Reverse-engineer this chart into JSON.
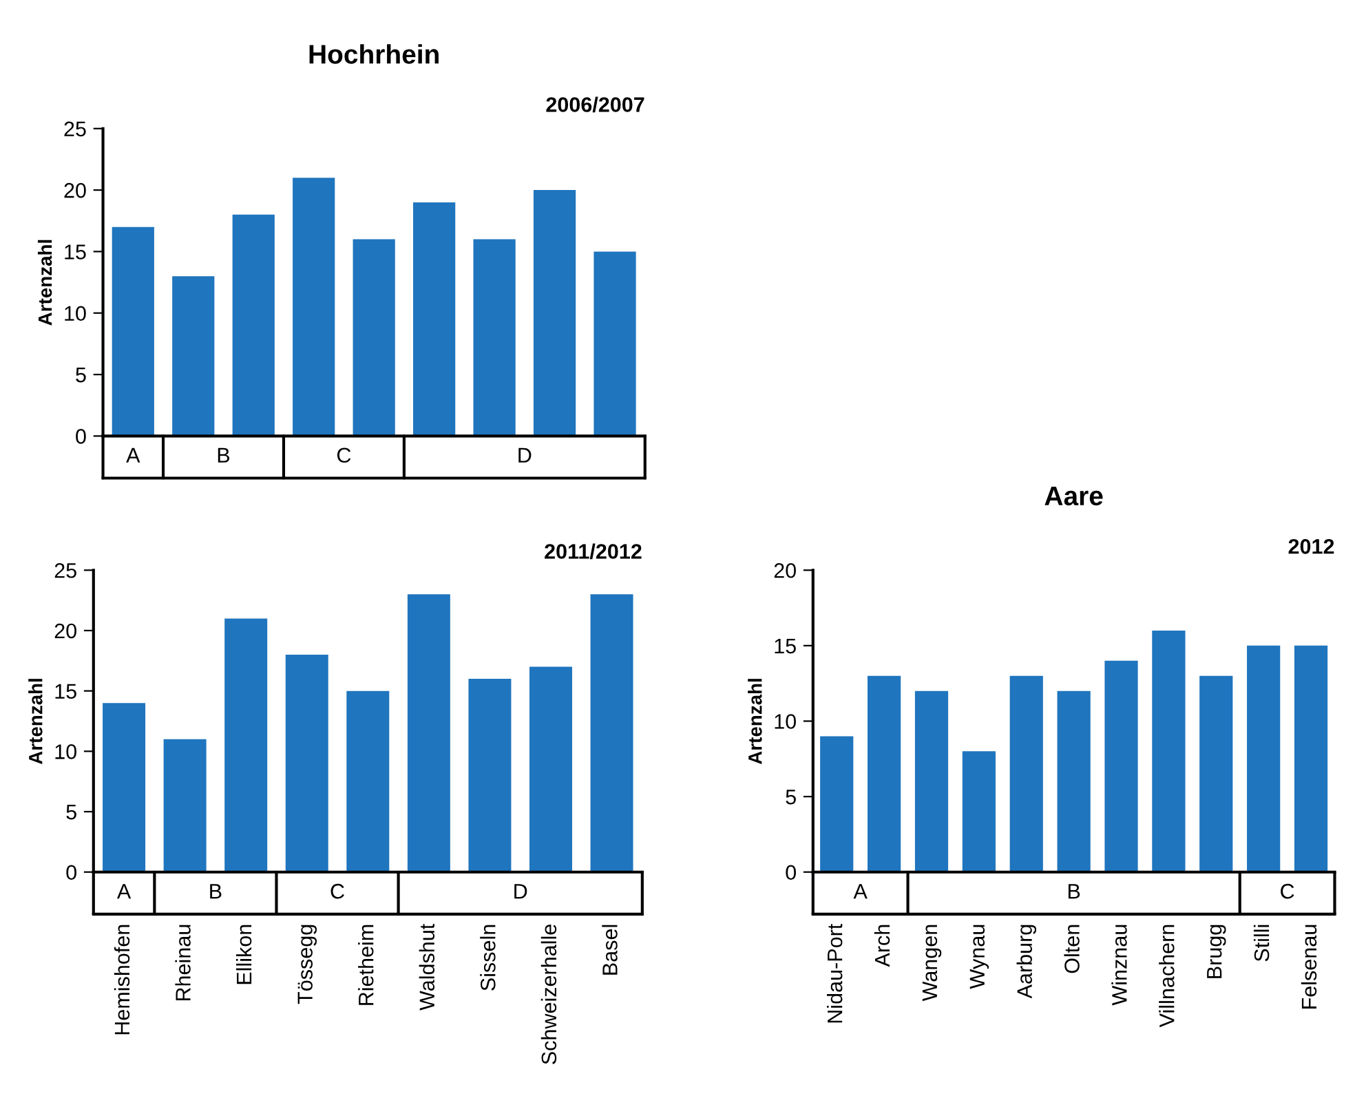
{
  "chart_data": [
    {
      "type": "bar",
      "title": "Hochrhein",
      "subtitle": "2006/2007",
      "ylabel": "Artenzahl",
      "categories": [
        null,
        null,
        null,
        null,
        null,
        null,
        null,
        null,
        null
      ],
      "values": [
        17,
        13,
        18,
        21,
        16,
        19,
        16,
        20,
        15
      ],
      "color": "#1f75be",
      "ylim": [
        0,
        25
      ],
      "yticks": [
        0,
        5,
        10,
        15,
        20,
        25
      ],
      "grid": false,
      "legend": false,
      "tick_labels": "y",
      "annotations": [
        "A",
        "B",
        "C",
        "D"
      ]
    },
    {
      "type": "bar",
      "title": "2011/2012",
      "ylabel": "Artenzahl",
      "categories": [
        "Hemishofen",
        "Rheinau",
        "Ellikon",
        "Tössegg",
        "Rietheim",
        "Waldshut",
        "Sisseln",
        "Schweizerhalle",
        "Basel"
      ],
      "values": [
        14,
        11,
        21,
        18,
        15,
        23,
        16,
        17,
        23
      ],
      "color": "#1f75be",
      "ylim": [
        0,
        25
      ],
      "yticks": [
        0,
        5,
        10,
        15,
        20,
        25
      ],
      "grid": false,
      "legend": false,
      "annotations": [
        "A",
        "B",
        "C",
        "D"
      ]
    },
    {
      "type": "bar",
      "title": "Aare",
      "subtitle": "2012",
      "ylabel": "Artenzahl",
      "categories": [
        "Nidau-Port",
        "Arch",
        "Wangen",
        "Wynau",
        "Aarburg",
        "Olten",
        "Winznau",
        "Villnachern",
        "Brugg",
        "Stilli",
        "Felsenau"
      ],
      "values": [
        9,
        13,
        12,
        8,
        13,
        12,
        14,
        16,
        13,
        15,
        15
      ],
      "color": "#1f75be",
      "ylim": [
        0,
        20
      ],
      "yticks": [
        0,
        5,
        10,
        15,
        20
      ],
      "grid": false,
      "legend": false,
      "annotations": [
        "A",
        "B",
        "C"
      ]
    }
  ]
}
